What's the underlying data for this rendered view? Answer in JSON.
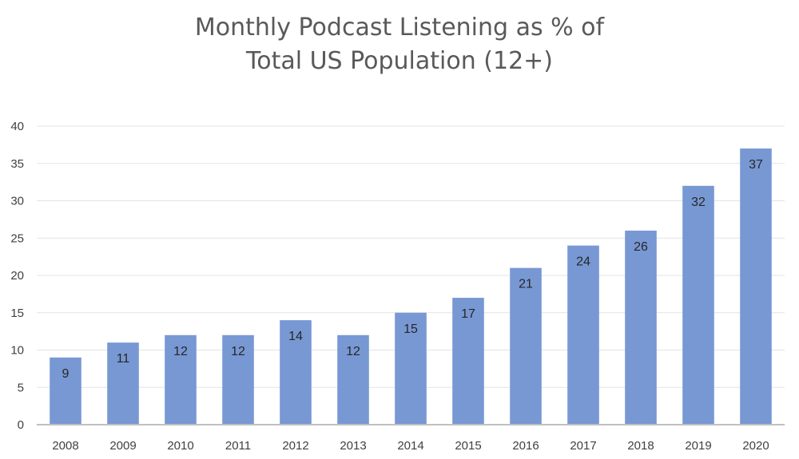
{
  "chart_data": {
    "type": "bar",
    "title_lines": [
      "Monthly Podcast Listening as % of",
      "Total US Population (12+)"
    ],
    "categories": [
      "2008",
      "2009",
      "2010",
      "2011",
      "2012",
      "2013",
      "2014",
      "2015",
      "2016",
      "2017",
      "2018",
      "2019",
      "2020"
    ],
    "values": [
      9,
      11,
      12,
      12,
      14,
      12,
      15,
      17,
      21,
      24,
      26,
      32,
      37
    ],
    "xlabel": "",
    "ylabel": "",
    "ylim": [
      0,
      40
    ],
    "yticks": [
      0,
      5,
      10,
      15,
      20,
      25,
      30,
      35,
      40
    ],
    "grid": true,
    "legend": "none",
    "data_labels": "inside-end",
    "bar_color": "#7898d4",
    "grid_color": "#e3e3e3",
    "axis_color": "#bfbfbf"
  }
}
